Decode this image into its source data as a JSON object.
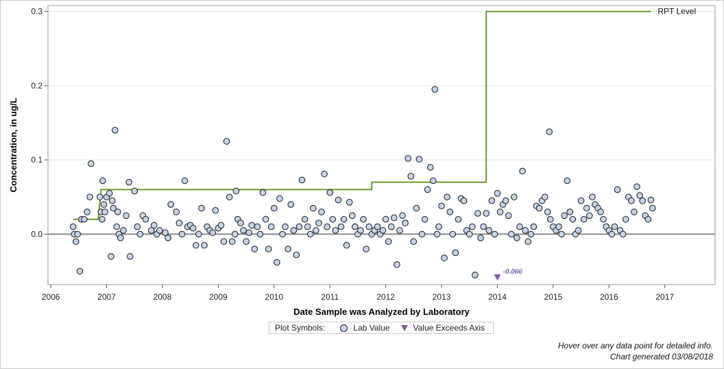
{
  "chart_data": {
    "type": "scatter",
    "xlabel": "Date Sample was Analyzed by Laboratory",
    "ylabel": "Concentration, in ug/L",
    "xlim": [
      2005.95,
      2017.9
    ],
    "ylim": [
      -0.068,
      0.308
    ],
    "x_ticks": [
      "2006",
      "2007",
      "2008",
      "2009",
      "2010",
      "2011",
      "2012",
      "2013",
      "2014",
      "2015",
      "2016",
      "2017"
    ],
    "y_ticks": [
      "0.3",
      "0.2",
      "0.1",
      "0.0"
    ],
    "zero_line": 0,
    "grid": "horizontal",
    "reference_line": {
      "label": "RPT Level",
      "color": "#6b9a2a",
      "steps": [
        [
          2006.4,
          0.02
        ],
        [
          2006.85,
          0.02
        ],
        [
          2006.9,
          0.06
        ],
        [
          2011.75,
          0.06
        ],
        [
          2011.75,
          0.07
        ],
        [
          2013.8,
          0.07
        ],
        [
          2013.8,
          0.3
        ],
        [
          2016.75,
          0.3
        ]
      ]
    },
    "series": [
      {
        "name": "Lab Value",
        "marker": "circle",
        "color": "#c5d3e6",
        "points": [
          [
            2006.4,
            0.01
          ],
          [
            2006.42,
            0.0
          ],
          [
            2006.45,
            -0.01
          ],
          [
            2006.48,
            0.0
          ],
          [
            2006.52,
            -0.05
          ],
          [
            2006.55,
            0.02
          ],
          [
            2006.6,
            0.02
          ],
          [
            2006.65,
            0.03
          ],
          [
            2006.7,
            0.05
          ],
          [
            2006.72,
            0.095
          ],
          [
            2006.88,
            0.05
          ],
          [
            2006.9,
            0.03
          ],
          [
            2006.92,
            0.02
          ],
          [
            2006.93,
            0.072
          ],
          [
            2006.95,
            0.04
          ],
          [
            2006.97,
            0.03
          ],
          [
            2007.0,
            0.05
          ],
          [
            2007.05,
            0.055
          ],
          [
            2007.08,
            -0.03
          ],
          [
            2007.1,
            0.045
          ],
          [
            2007.12,
            0.035
          ],
          [
            2007.15,
            0.14
          ],
          [
            2007.18,
            0.01
          ],
          [
            2007.2,
            0.03
          ],
          [
            2007.22,
            0.0
          ],
          [
            2007.25,
            -0.005
          ],
          [
            2007.3,
            0.005
          ],
          [
            2007.35,
            0.025
          ],
          [
            2007.4,
            0.07
          ],
          [
            2007.42,
            -0.03
          ],
          [
            2007.5,
            0.058
          ],
          [
            2007.55,
            0.01
          ],
          [
            2007.6,
            0.0
          ],
          [
            2007.65,
            0.025
          ],
          [
            2007.7,
            0.02
          ],
          [
            2007.8,
            0.005
          ],
          [
            2007.85,
            0.012
          ],
          [
            2007.9,
            0.0
          ],
          [
            2007.95,
            0.005
          ],
          [
            2008.05,
            0.002
          ],
          [
            2008.1,
            -0.005
          ],
          [
            2008.15,
            0.04
          ],
          [
            2008.25,
            0.03
          ],
          [
            2008.3,
            0.015
          ],
          [
            2008.35,
            0.0
          ],
          [
            2008.4,
            0.072
          ],
          [
            2008.45,
            0.01
          ],
          [
            2008.5,
            0.012
          ],
          [
            2008.55,
            0.008
          ],
          [
            2008.6,
            -0.015
          ],
          [
            2008.65,
            0.0
          ],
          [
            2008.7,
            0.035
          ],
          [
            2008.75,
            -0.015
          ],
          [
            2008.8,
            0.01
          ],
          [
            2008.85,
            0.005
          ],
          [
            2008.9,
            0.002
          ],
          [
            2008.95,
            0.032
          ],
          [
            2009.0,
            0.008
          ],
          [
            2009.05,
            0.012
          ],
          [
            2009.1,
            -0.01
          ],
          [
            2009.15,
            0.125
          ],
          [
            2009.2,
            0.05
          ],
          [
            2009.25,
            -0.01
          ],
          [
            2009.3,
            0.0
          ],
          [
            2009.32,
            0.058
          ],
          [
            2009.35,
            0.02
          ],
          [
            2009.4,
            0.015
          ],
          [
            2009.45,
            0.005
          ],
          [
            2009.5,
            -0.01
          ],
          [
            2009.55,
            0.002
          ],
          [
            2009.6,
            0.012
          ],
          [
            2009.65,
            -0.02
          ],
          [
            2009.7,
            0.01
          ],
          [
            2009.75,
            0.0
          ],
          [
            2009.8,
            0.056
          ],
          [
            2009.85,
            0.02
          ],
          [
            2009.9,
            -0.02
          ],
          [
            2009.95,
            0.01
          ],
          [
            2010.0,
            0.035
          ],
          [
            2010.05,
            -0.038
          ],
          [
            2010.1,
            0.048
          ],
          [
            2010.15,
            0.0
          ],
          [
            2010.2,
            0.01
          ],
          [
            2010.25,
            -0.02
          ],
          [
            2010.3,
            0.04
          ],
          [
            2010.35,
            0.005
          ],
          [
            2010.4,
            -0.028
          ],
          [
            2010.45,
            0.01
          ],
          [
            2010.5,
            0.073
          ],
          [
            2010.55,
            0.02
          ],
          [
            2010.6,
            0.01
          ],
          [
            2010.65,
            0.0
          ],
          [
            2010.7,
            0.035
          ],
          [
            2010.75,
            0.005
          ],
          [
            2010.8,
            0.015
          ],
          [
            2010.85,
            0.03
          ],
          [
            2010.9,
            0.081
          ],
          [
            2010.95,
            0.01
          ],
          [
            2011.0,
            0.056
          ],
          [
            2011.05,
            0.02
          ],
          [
            2011.1,
            0.005
          ],
          [
            2011.15,
            0.046
          ],
          [
            2011.2,
            0.01
          ],
          [
            2011.25,
            0.02
          ],
          [
            2011.3,
            -0.015
          ],
          [
            2011.35,
            0.043
          ],
          [
            2011.4,
            0.025
          ],
          [
            2011.45,
            0.01
          ],
          [
            2011.5,
            0.0
          ],
          [
            2011.55,
            0.005
          ],
          [
            2011.6,
            0.02
          ],
          [
            2011.65,
            -0.02
          ],
          [
            2011.7,
            0.01
          ],
          [
            2011.75,
            0.0
          ],
          [
            2011.8,
            0.005
          ],
          [
            2011.85,
            0.01
          ],
          [
            2011.9,
            0.0
          ],
          [
            2011.95,
            0.005
          ],
          [
            2012.0,
            0.02
          ],
          [
            2012.05,
            -0.01
          ],
          [
            2012.1,
            0.01
          ],
          [
            2012.15,
            0.022
          ],
          [
            2012.2,
            -0.041
          ],
          [
            2012.25,
            0.005
          ],
          [
            2012.3,
            0.025
          ],
          [
            2012.35,
            0.015
          ],
          [
            2012.4,
            0.102
          ],
          [
            2012.45,
            0.078
          ],
          [
            2012.5,
            -0.01
          ],
          [
            2012.55,
            0.035
          ],
          [
            2012.6,
            0.101
          ],
          [
            2012.65,
            0.0
          ],
          [
            2012.7,
            0.02
          ],
          [
            2012.75,
            0.06
          ],
          [
            2012.8,
            0.09
          ],
          [
            2012.85,
            0.072
          ],
          [
            2012.88,
            0.195
          ],
          [
            2012.92,
            0.0
          ],
          [
            2012.95,
            0.01
          ],
          [
            2013.0,
            0.038
          ],
          [
            2013.05,
            -0.032
          ],
          [
            2013.1,
            0.05
          ],
          [
            2013.15,
            0.03
          ],
          [
            2013.2,
            0.0
          ],
          [
            2013.25,
            -0.025
          ],
          [
            2013.3,
            0.02
          ],
          [
            2013.35,
            0.048
          ],
          [
            2013.4,
            0.045
          ],
          [
            2013.45,
            0.005
          ],
          [
            2013.5,
            0.0
          ],
          [
            2013.55,
            0.01
          ],
          [
            2013.6,
            -0.055
          ],
          [
            2013.65,
            0.028
          ],
          [
            2013.7,
            -0.005
          ],
          [
            2013.75,
            0.01
          ],
          [
            2013.8,
            0.028
          ],
          [
            2013.85,
            0.005
          ],
          [
            2013.9,
            0.045
          ],
          [
            2013.95,
            0.0
          ],
          [
            2014.0,
            0.055
          ],
          [
            2014.05,
            0.03
          ],
          [
            2014.1,
            0.04
          ],
          [
            2014.15,
            0.045
          ],
          [
            2014.2,
            0.025
          ],
          [
            2014.25,
            0.0
          ],
          [
            2014.3,
            0.05
          ],
          [
            2014.35,
            -0.005
          ],
          [
            2014.4,
            0.01
          ],
          [
            2014.45,
            0.085
          ],
          [
            2014.5,
            0.005
          ],
          [
            2014.55,
            -0.01
          ],
          [
            2014.6,
            0.0
          ],
          [
            2014.65,
            0.01
          ],
          [
            2014.7,
            0.038
          ],
          [
            2014.75,
            0.035
          ],
          [
            2014.8,
            0.045
          ],
          [
            2014.85,
            0.05
          ],
          [
            2014.9,
            0.03
          ],
          [
            2014.93,
            0.138
          ],
          [
            2014.95,
            0.02
          ],
          [
            2015.0,
            0.01
          ],
          [
            2015.05,
            0.005
          ],
          [
            2015.1,
            0.01
          ],
          [
            2015.15,
            0.0
          ],
          [
            2015.2,
            0.025
          ],
          [
            2015.25,
            0.072
          ],
          [
            2015.3,
            0.03
          ],
          [
            2015.35,
            0.02
          ],
          [
            2015.4,
            0.0
          ],
          [
            2015.45,
            0.005
          ],
          [
            2015.5,
            0.045
          ],
          [
            2015.55,
            0.02
          ],
          [
            2015.6,
            0.035
          ],
          [
            2015.65,
            0.025
          ],
          [
            2015.7,
            0.05
          ],
          [
            2015.75,
            0.04
          ],
          [
            2015.8,
            0.035
          ],
          [
            2015.85,
            0.03
          ],
          [
            2015.9,
            0.02
          ],
          [
            2015.95,
            0.01
          ],
          [
            2016.0,
            0.005
          ],
          [
            2016.05,
            0.0
          ],
          [
            2016.1,
            0.01
          ],
          [
            2016.15,
            0.06
          ],
          [
            2016.2,
            0.005
          ],
          [
            2016.25,
            0.0
          ],
          [
            2016.3,
            0.02
          ],
          [
            2016.35,
            0.05
          ],
          [
            2016.4,
            0.045
          ],
          [
            2016.45,
            0.03
          ],
          [
            2016.5,
            0.064
          ],
          [
            2016.55,
            0.052
          ],
          [
            2016.6,
            0.045
          ],
          [
            2016.65,
            0.025
          ],
          [
            2016.7,
            0.02
          ],
          [
            2016.75,
            0.046
          ],
          [
            2016.78,
            0.035
          ]
        ]
      },
      {
        "name": "Value Exceeds Axis",
        "marker": "triangle-down",
        "color": "#7d5ba6",
        "points": [
          [
            2014.0,
            -0.066
          ]
        ],
        "labels": [
          "-0.066"
        ]
      }
    ]
  },
  "legend": {
    "title": "Plot Symbols:",
    "items": [
      "Lab Value",
      "Value Exceeds Axis"
    ]
  },
  "footnotes": {
    "hover": "Hover over any data point for detailed info.",
    "generated": "Chart generated 03/08/2018"
  }
}
